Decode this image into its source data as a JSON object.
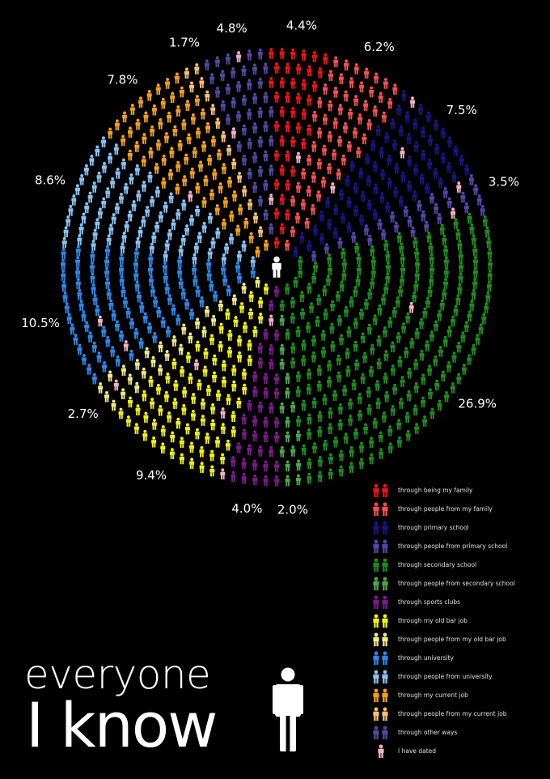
{
  "title": {
    "line1": "everyone",
    "line2": "I know"
  },
  "colors": {
    "family": "#e3161b",
    "people_family": "#f25050",
    "primary": "#16167e",
    "people_primary": "#5347a8",
    "secondary": "#1f8a1f",
    "people_secondary": "#4ca64c",
    "sports": "#7a1a8a",
    "bar_job": "#f2ee1a",
    "people_bar_job": "#efe98a",
    "university": "#2d87e6",
    "people_university": "#86c2f2",
    "current_job": "#f0a020",
    "people_current_job": "#f7c070",
    "other": "#53489e",
    "dated": "#f5b0c8",
    "center": "#ffffff"
  },
  "chart_data": {
    "type": "pie",
    "title": "everyone I know",
    "unit": "%",
    "slices": [
      {
        "label": "4.4%",
        "value": 4.4,
        "color_key": "family",
        "start_deg": -2
      },
      {
        "label": "6.2%",
        "value": 6.2,
        "color_key": "people_family"
      },
      {
        "label": "7.5%",
        "value": 7.5,
        "color_key": "primary"
      },
      {
        "label": "3.5%",
        "value": 3.5,
        "color_key": "people_primary"
      },
      {
        "label": "26.9%",
        "value": 26.9,
        "color_key": "secondary"
      },
      {
        "label": "2.0%",
        "value": 2.0,
        "color_key": "people_secondary"
      },
      {
        "label": "4.0%",
        "value": 4.0,
        "color_key": "sports"
      },
      {
        "label": "9.4%",
        "value": 9.4,
        "color_key": "bar_job"
      },
      {
        "label": "2.7%",
        "value": 2.7,
        "color_key": "people_bar_job"
      },
      {
        "label": "10.5%",
        "value": 10.5,
        "color_key": "university"
      },
      {
        "label": "8.6%",
        "value": 8.6,
        "color_key": "people_university"
      },
      {
        "label": "7.8%",
        "value": 7.8,
        "color_key": "current_job"
      },
      {
        "label": "1.7%",
        "value": 1.7,
        "color_key": "people_current_job"
      },
      {
        "label": "4.8%",
        "value": 4.8,
        "color_key": "other"
      }
    ]
  },
  "legend": [
    {
      "label": "through being my family",
      "color_key": "family",
      "icon": "pair-figure-icon"
    },
    {
      "label": "through people from my family",
      "color_key": "people_family",
      "icon": "pair-figure-icon"
    },
    {
      "label": "through primary school",
      "color_key": "primary",
      "icon": "pair-figure-icon"
    },
    {
      "label": "through people from primary school",
      "color_key": "people_primary",
      "icon": "pair-figure-icon"
    },
    {
      "label": "through secondary school",
      "color_key": "secondary",
      "icon": "pair-figure-icon"
    },
    {
      "label": "through people from secondary school",
      "color_key": "people_secondary",
      "icon": "pair-figure-icon"
    },
    {
      "label": "through sports clubs",
      "color_key": "sports",
      "icon": "pair-figure-icon"
    },
    {
      "label": "through my old bar job",
      "color_key": "bar_job",
      "icon": "pair-figure-icon"
    },
    {
      "label": "through people from my old bar job",
      "color_key": "people_bar_job",
      "icon": "pair-figure-icon"
    },
    {
      "label": "through university",
      "color_key": "university",
      "icon": "pair-figure-icon"
    },
    {
      "label": "through people from university",
      "color_key": "people_university",
      "icon": "pair-figure-icon"
    },
    {
      "label": "through my current job",
      "color_key": "current_job",
      "icon": "pair-figure-icon"
    },
    {
      "label": "through people from my current job",
      "color_key": "people_current_job",
      "icon": "pair-figure-icon"
    },
    {
      "label": "through other ways",
      "color_key": "other",
      "icon": "pair-figure-icon"
    },
    {
      "label": "I have dated",
      "color_key": "dated",
      "icon": "single-figure-icon"
    }
  ]
}
